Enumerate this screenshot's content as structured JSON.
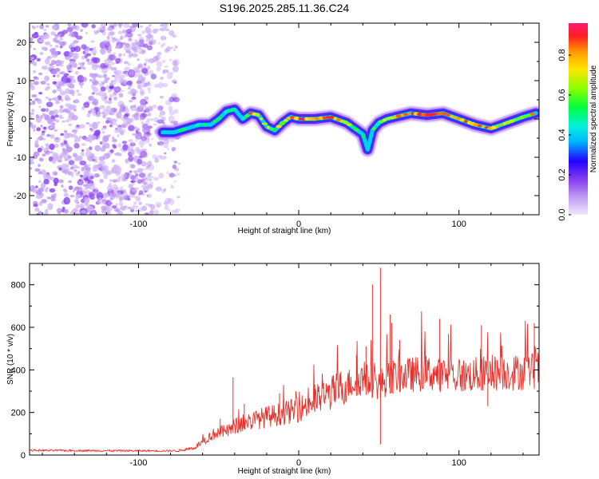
{
  "title": "S196.2025.285.11.36.C24",
  "colors": {
    "snr_line": "#e8302a",
    "colormap": [
      "#f0e6ff",
      "#c09ef2",
      "#8a3ff0",
      "#2200ff",
      "#00b4ff",
      "#00f0dd",
      "#00ff40",
      "#8bff00",
      "#ffe600",
      "#ff9a00",
      "#ff2020",
      "#ff1a70"
    ]
  },
  "chart_data": [
    {
      "type": "heatmap",
      "name": "spectrogram",
      "xlabel": "Height of straight line (km)",
      "ylabel": "Frequency (Hz)",
      "xlim": [
        -168,
        150
      ],
      "ylim": [
        -25,
        25
      ],
      "xticks": [
        -100,
        0,
        100
      ],
      "xtick_labels": [
        "-100",
        "0",
        "100"
      ],
      "yticks": [
        -20,
        -10,
        0,
        10,
        20
      ],
      "ytick_labels": [
        "-20",
        "-10",
        "0",
        "10",
        "20"
      ],
      "noise_region_x": [
        -168,
        -75
      ],
      "ridge": {
        "x": [
          -85,
          -78,
          -70,
          -62,
          -55,
          -50,
          -45,
          -40,
          -35,
          -30,
          -25,
          -20,
          -15,
          -10,
          -5,
          0,
          10,
          20,
          30,
          35,
          40,
          43,
          46,
          50,
          55,
          60,
          70,
          80,
          90,
          100,
          110,
          120,
          130,
          140,
          148
        ],
        "freq": [
          -3.5,
          -3.5,
          -2.5,
          -1.5,
          -1.5,
          0,
          2,
          2.5,
          0,
          1.5,
          1,
          -2,
          -3,
          -1,
          0.5,
          0,
          0,
          0.5,
          -1,
          -2.5,
          -4,
          -8,
          -3,
          -1,
          0,
          0.5,
          1.5,
          1,
          1.5,
          0,
          -1.5,
          -2.5,
          -1,
          0.5,
          1.5
        ],
        "amplitude": [
          0.3,
          0.4,
          0.45,
          0.5,
          0.5,
          0.55,
          0.45,
          0.5,
          0.55,
          0.8,
          0.7,
          0.8,
          0.6,
          0.7,
          0.8,
          0.85,
          0.9,
          0.85,
          0.7,
          0.5,
          0.45,
          0.3,
          0.5,
          0.6,
          0.7,
          0.75,
          0.85,
          0.95,
          0.9,
          0.85,
          0.8,
          0.85,
          0.6,
          0.7,
          0.8
        ]
      },
      "colorbar": {
        "label": "Normalized spectral amplitude",
        "range": [
          0,
          0.96
        ],
        "ticks": [
          0.0,
          0.2,
          0.4,
          0.6,
          0.8
        ],
        "tick_labels": [
          "0.0",
          "0.2",
          "0.4",
          "0.6",
          "0.8"
        ]
      }
    },
    {
      "type": "line",
      "name": "snr",
      "xlabel": "Height of straight line (km)",
      "ylabel": "SNR (10 * v/v)",
      "xlim": [
        -168,
        150
      ],
      "ylim": [
        0,
        900
      ],
      "xticks": [
        -100,
        0,
        100
      ],
      "xtick_labels": [
        "-100",
        "0",
        "100"
      ],
      "yticks": [
        0,
        200,
        400,
        600,
        800
      ],
      "ytick_labels": [
        "0",
        "200",
        "400",
        "600",
        "800"
      ],
      "trend": {
        "x": [
          -168,
          -100,
          -75,
          -65,
          -55,
          -50,
          -45,
          -40,
          -35,
          -30,
          -25,
          -20,
          -10,
          0,
          10,
          20,
          30,
          40,
          45,
          50,
          55,
          60,
          80,
          100,
          120,
          140,
          150
        ],
        "y": [
          22,
          20,
          20,
          35,
          90,
          110,
          110,
          135,
          150,
          160,
          170,
          180,
          195,
          215,
          255,
          290,
          330,
          360,
          345,
          330,
          355,
          370,
          385,
          370,
          385,
          390,
          400
        ]
      },
      "spikes": [
        {
          "x": -49,
          "y": 170
        },
        {
          "x": -41,
          "y": 365
        },
        {
          "x": -34,
          "y": 240
        },
        {
          "x": -12,
          "y": 290
        },
        {
          "x": 10,
          "y": 330
        },
        {
          "x": 36,
          "y": 470
        },
        {
          "x": 42,
          "y": 510
        },
        {
          "x": 46,
          "y": 800
        },
        {
          "x": 51,
          "y": 880
        },
        {
          "x": 57,
          "y": 660
        },
        {
          "x": 58,
          "y": 620
        },
        {
          "x": 63,
          "y": 540
        },
        {
          "x": 88,
          "y": 640
        },
        {
          "x": 114,
          "y": 610
        },
        {
          "x": 147,
          "y": 620
        },
        {
          "x": 51,
          "y": 50
        },
        {
          "x": 118,
          "y": 230
        },
        {
          "x": 150,
          "y": 250
        }
      ]
    }
  ]
}
